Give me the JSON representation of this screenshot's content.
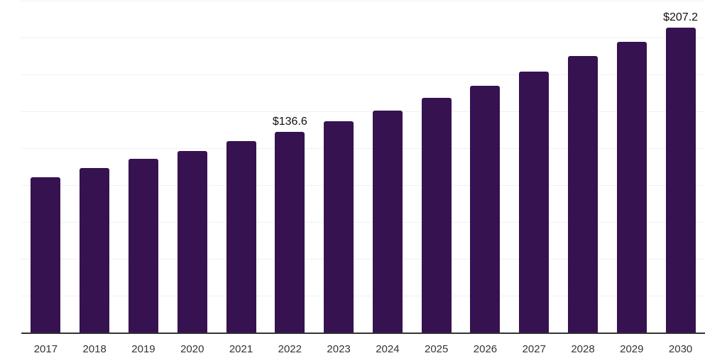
{
  "chart": {
    "background_color": "#ffffff",
    "bar_color": "#361250",
    "grid_color": "#f0f0f0",
    "axis_color": "#333333",
    "year_label_color": "#333333",
    "value_label_color": "#111111"
  },
  "chart_data": {
    "type": "bar",
    "title": "",
    "xlabel": "",
    "ylabel": "",
    "categories": [
      "2017",
      "2018",
      "2019",
      "2020",
      "2021",
      "2022",
      "2023",
      "2024",
      "2025",
      "2026",
      "2027",
      "2028",
      "2029",
      "2030"
    ],
    "values": [
      105.8,
      112.0,
      118.2,
      123.7,
      130.2,
      136.6,
      143.9,
      150.8,
      159.5,
      167.7,
      177.3,
      187.9,
      197.5,
      207.2
    ],
    "data_labels": [
      {
        "category": "2022",
        "text": "$136.6"
      },
      {
        "category": "2030",
        "text": "$207.2"
      }
    ],
    "ylim": [
      0,
      225
    ],
    "grid_step": 25,
    "grid_visible": true,
    "y_axis_tick_labels_visible": false,
    "legend_visible": false
  }
}
